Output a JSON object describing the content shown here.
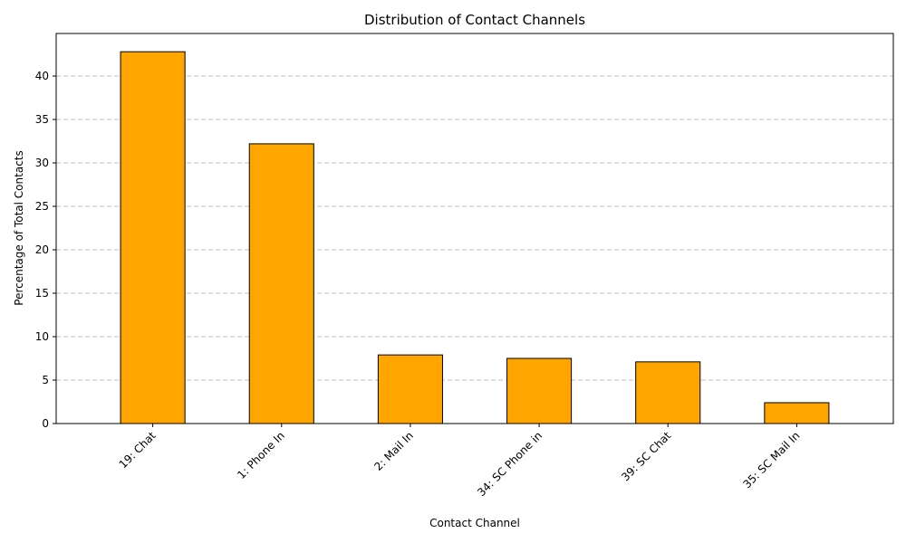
{
  "chart_data": {
    "type": "bar",
    "title": "Distribution of Contact Channels",
    "xlabel": "Contact Channel",
    "ylabel": "Percentage of Total Contacts",
    "categories": [
      "19: Chat",
      "1: Phone In",
      "2: Mail In",
      "34: SC Phone in",
      "39: SC Chat",
      "35: SC Mail In"
    ],
    "values": [
      42.8,
      32.2,
      7.9,
      7.5,
      7.1,
      2.4
    ],
    "ylim": [
      0,
      44.9
    ],
    "yticks": [
      0,
      5,
      10,
      15,
      20,
      25,
      30,
      35,
      40
    ],
    "ytick_labels": [
      "0",
      "5",
      "10",
      "15",
      "20",
      "25",
      "30",
      "35",
      "40"
    ],
    "grid": "y-dashed",
    "bar_color": "#FFA500",
    "edge_color": "#000000",
    "grid_color": "#c0c0c0"
  }
}
